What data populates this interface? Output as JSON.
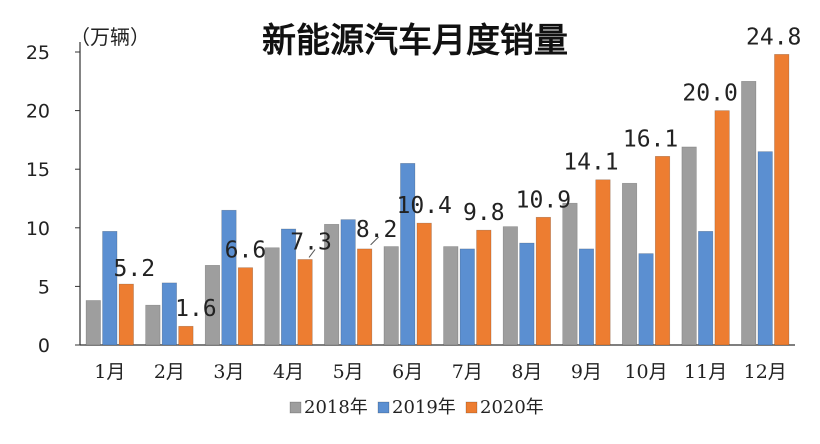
{
  "chart_data": {
    "type": "bar",
    "title": "新能源汽车月度销量",
    "unit_label": "（万辆）",
    "categories": [
      "1月",
      "2月",
      "3月",
      "4月",
      "5月",
      "6月",
      "7月",
      "8月",
      "9月",
      "10月",
      "11月",
      "12月"
    ],
    "ylim": [
      0,
      25
    ],
    "yticks": [
      0,
      5,
      10,
      15,
      20,
      25
    ],
    "grid": false,
    "legend_position": "bottom-center",
    "series": [
      {
        "name": "2018年",
        "color": "#9e9e9e",
        "values": [
          3.8,
          3.4,
          6.8,
          8.3,
          10.3,
          8.4,
          8.4,
          10.1,
          12.1,
          13.8,
          16.9,
          22.5
        ]
      },
      {
        "name": "2019年",
        "color": "#5b8fd1",
        "values": [
          9.7,
          5.3,
          11.5,
          9.9,
          10.7,
          15.5,
          8.2,
          8.7,
          8.2,
          7.8,
          9.7,
          16.5
        ]
      },
      {
        "name": "2020年",
        "color": "#ed7d31",
        "values": [
          5.2,
          1.6,
          6.6,
          7.3,
          8.2,
          10.4,
          9.8,
          10.9,
          14.1,
          16.1,
          20.0,
          24.8
        ]
      }
    ],
    "data_labels": [
      "5.2",
      "1.6",
      "6.6",
      "7.3",
      "8.2",
      "10.4",
      "9.8",
      "10.9",
      "14.1",
      "16.1",
      "20.0",
      "24.8"
    ]
  }
}
